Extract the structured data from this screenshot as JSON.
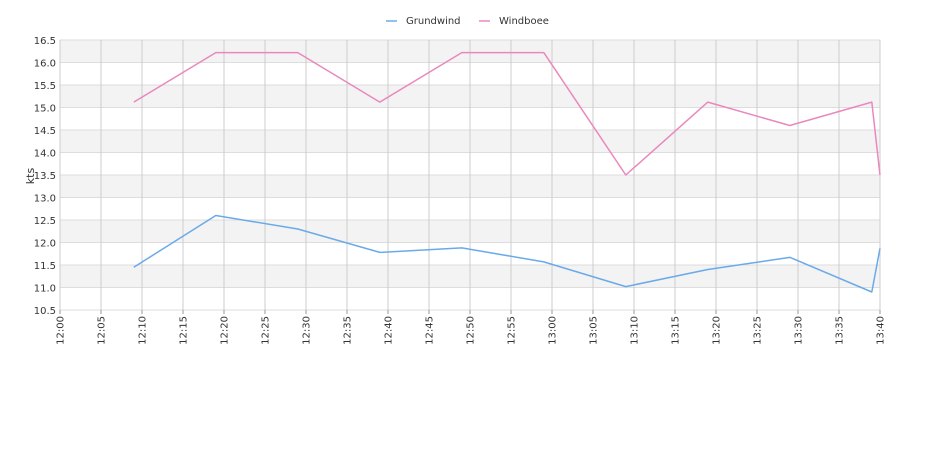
{
  "chart_data": {
    "type": "line",
    "title": "",
    "xlabel": "",
    "ylabel": "kts",
    "ylim": [
      10.5,
      16.5
    ],
    "xlim": [
      "12:00",
      "13:40"
    ],
    "y_ticks": [
      "10.5",
      "11.0",
      "11.5",
      "12.0",
      "12.5",
      "13.0",
      "13.5",
      "14.0",
      "14.5",
      "15.0",
      "15.5",
      "16.0",
      "16.5"
    ],
    "x_ticks": [
      "12:00",
      "12:05",
      "12:10",
      "12:15",
      "12:20",
      "12:25",
      "12:30",
      "12:35",
      "12:40",
      "12:45",
      "12:50",
      "12:55",
      "13:00",
      "13:05",
      "13:10",
      "13:15",
      "13:20",
      "13:25",
      "13:30",
      "13:35",
      "13:40"
    ],
    "grid": true,
    "legend_position": "top-center",
    "series": [
      {
        "name": "Grundwind",
        "color": "#6aaaea",
        "x": [
          "12:09",
          "12:19",
          "12:29",
          "12:39",
          "12:49",
          "12:59",
          "13:09",
          "13:19",
          "13:29",
          "13:39",
          "13:40"
        ],
        "values": [
          11.45,
          12.6,
          12.3,
          11.78,
          11.88,
          11.57,
          11.02,
          11.4,
          11.67,
          10.9,
          11.87
        ]
      },
      {
        "name": "Windboee",
        "color": "#ea88bd",
        "x": [
          "12:09",
          "12:19",
          "12:29",
          "12:39",
          "12:49",
          "12:59",
          "13:09",
          "13:19",
          "13:29",
          "13:39",
          "13:40"
        ],
        "values": [
          15.12,
          16.22,
          16.22,
          15.12,
          16.22,
          16.22,
          13.5,
          15.12,
          14.6,
          15.12,
          13.5
        ]
      }
    ]
  }
}
